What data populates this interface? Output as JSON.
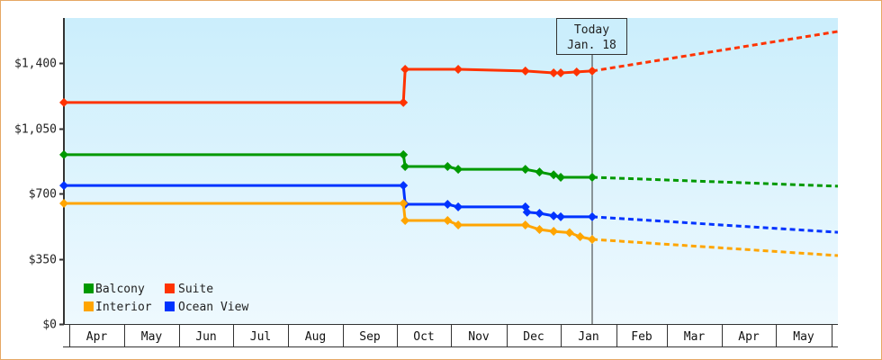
{
  "chart_data": {
    "type": "line",
    "title": "",
    "xlabel": "",
    "ylabel": "",
    "ylim": [
      0,
      1641
    ],
    "y_ticks": [
      "$0",
      "$350",
      "$700",
      "$1,050",
      "$1,400"
    ],
    "y_tick_values": [
      0,
      350,
      700,
      1050,
      1400
    ],
    "x_ticks": [
      "Apr",
      "May",
      "Jun",
      "Jul",
      "Aug",
      "Sep",
      "Oct",
      "Nov",
      "Dec",
      "Jan",
      "Feb",
      "Mar",
      "Apr",
      "May"
    ],
    "today_marker": {
      "line1": "Today",
      "line2": "Jan. 18"
    },
    "legend_position": "bottom-left inside plot",
    "grid": false,
    "series": [
      {
        "name": "Balcony",
        "color": "#009900",
        "points": [
          {
            "date": "Apr 1",
            "value": 908
          },
          {
            "date": "Oct 7",
            "value": 908
          },
          {
            "date": "Oct 8",
            "value": 845
          },
          {
            "date": "Nov 1",
            "value": 845
          },
          {
            "date": "Nov 7",
            "value": 830
          },
          {
            "date": "Dec 14",
            "value": 830
          },
          {
            "date": "Dec 22",
            "value": 815
          },
          {
            "date": "Dec 30",
            "value": 800
          },
          {
            "date": "Jan 3",
            "value": 787
          },
          {
            "date": "Jan 18",
            "value": 787
          }
        ],
        "forecast": [
          {
            "date": "Jan 18",
            "value": 787
          },
          {
            "date": "May 31",
            "value": 739
          }
        ]
      },
      {
        "name": "Suite",
        "color": "#ff3300",
        "points": [
          {
            "date": "Apr 1",
            "value": 1188
          },
          {
            "date": "Oct 7",
            "value": 1188
          },
          {
            "date": "Oct 8",
            "value": 1366
          },
          {
            "date": "Nov 7",
            "value": 1366
          },
          {
            "date": "Dec 14",
            "value": 1357
          },
          {
            "date": "Dec 30",
            "value": 1347
          },
          {
            "date": "Jan 3",
            "value": 1347
          },
          {
            "date": "Jan 12",
            "value": 1352
          },
          {
            "date": "Jan 18",
            "value": 1357
          }
        ],
        "forecast": [
          {
            "date": "Jan 18",
            "value": 1357
          },
          {
            "date": "May 31",
            "value": 1569
          }
        ]
      },
      {
        "name": "Interior",
        "color": "#ffa500",
        "points": [
          {
            "date": "Apr 1",
            "value": 647
          },
          {
            "date": "Oct 7",
            "value": 647
          },
          {
            "date": "Oct 8",
            "value": 555
          },
          {
            "date": "Nov 1",
            "value": 555
          },
          {
            "date": "Nov 7",
            "value": 531
          },
          {
            "date": "Dec 14",
            "value": 531
          },
          {
            "date": "Dec 22",
            "value": 507
          },
          {
            "date": "Dec 30",
            "value": 497
          },
          {
            "date": "Jan 8",
            "value": 490
          },
          {
            "date": "Jan 14",
            "value": 468
          },
          {
            "date": "Jan 18",
            "value": 454
          }
        ],
        "forecast": [
          {
            "date": "Jan 18",
            "value": 454
          },
          {
            "date": "May 31",
            "value": 367
          }
        ]
      },
      {
        "name": "Ocean View",
        "color": "#0033ff",
        "points": [
          {
            "date": "Apr 1",
            "value": 743
          },
          {
            "date": "Oct 7",
            "value": 743
          },
          {
            "date": "Oct 8",
            "value": 642
          },
          {
            "date": "Nov 1",
            "value": 642
          },
          {
            "date": "Nov 7",
            "value": 628
          },
          {
            "date": "Dec 14",
            "value": 628
          },
          {
            "date": "Dec 15",
            "value": 600
          },
          {
            "date": "Dec 22",
            "value": 594
          },
          {
            "date": "Dec 30",
            "value": 580
          },
          {
            "date": "Jan 3",
            "value": 575
          },
          {
            "date": "Jan 18",
            "value": 575
          }
        ],
        "forecast": [
          {
            "date": "Jan 18",
            "value": 575
          },
          {
            "date": "May 31",
            "value": 492
          }
        ]
      }
    ]
  },
  "legend": {
    "items": [
      {
        "label": "Balcony",
        "color": "#009900"
      },
      {
        "label": "Suite",
        "color": "#ff3300"
      },
      {
        "label": "Interior",
        "color": "#ffa500"
      },
      {
        "label": "Ocean View",
        "color": "#0033ff"
      }
    ]
  },
  "axis": {
    "y": [
      "$0",
      "$350",
      "$700",
      "$1,050",
      "$1,400"
    ],
    "x": [
      "Apr",
      "May",
      "Jun",
      "Jul",
      "Aug",
      "Sep",
      "Oct",
      "Nov",
      "Dec",
      "Jan",
      "Feb",
      "Mar",
      "Apr",
      "May"
    ]
  },
  "today": {
    "line1": "Today",
    "line2": "Jan. 18"
  }
}
